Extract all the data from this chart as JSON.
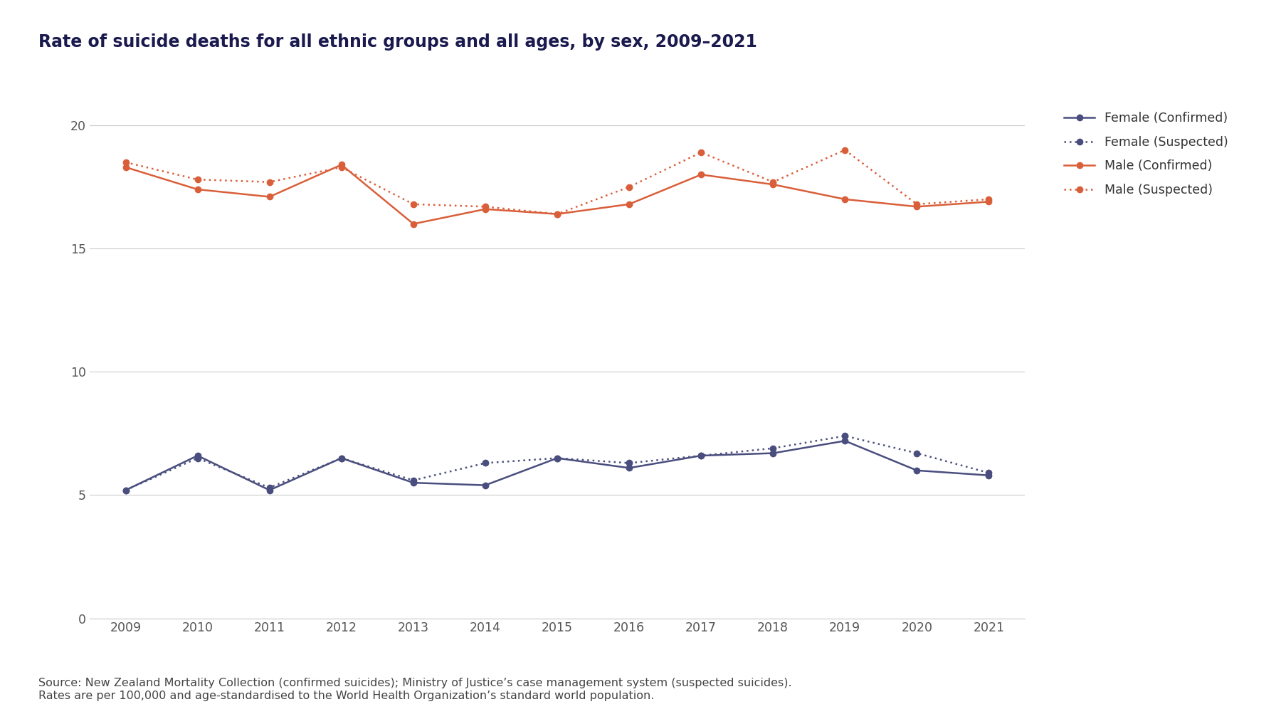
{
  "years": [
    2009,
    2010,
    2011,
    2012,
    2013,
    2014,
    2015,
    2016,
    2017,
    2018,
    2019,
    2020,
    2021
  ],
  "female_confirmed": [
    5.2,
    6.6,
    5.2,
    6.5,
    5.5,
    5.4,
    6.5,
    6.1,
    6.6,
    6.7,
    7.2,
    6.0,
    5.8
  ],
  "female_suspected": [
    5.2,
    6.5,
    5.3,
    6.5,
    5.6,
    6.3,
    6.5,
    6.3,
    6.6,
    6.9,
    7.4,
    6.7,
    5.9
  ],
  "male_confirmed": [
    18.3,
    17.4,
    17.1,
    18.4,
    16.0,
    16.6,
    16.4,
    16.8,
    18.0,
    17.6,
    17.0,
    16.7,
    16.9
  ],
  "male_suspected": [
    18.5,
    17.8,
    17.7,
    18.3,
    16.8,
    16.7,
    16.4,
    17.5,
    18.9,
    17.7,
    19.0,
    16.8,
    17.0
  ],
  "female_color": "#4a4e7e",
  "male_color": "#d95f3a",
  "title": "Rate of suicide deaths for all ethnic groups and all ages, by sex, 2009–2021",
  "legend_labels": [
    "Female (Confirmed)",
    "Female (Suspected)",
    "Male (Confirmed)",
    "Male (Suspected)"
  ],
  "footnote_line1": "Source: New Zealand Mortality Collection (confirmed suicides); Ministry of Justice’s case management system (suspected suicides).",
  "footnote_line2": "Rates are per 100,000 and age-standardised to the World Health Organization’s standard world population.",
  "ylim": [
    0,
    21
  ],
  "yticks": [
    0,
    5,
    10,
    15,
    20
  ],
  "background_color": "#ffffff",
  "title_fontsize": 17,
  "title_color": "#1a1a4e",
  "footnote_fontsize": 11.5,
  "tick_fontsize": 12.5,
  "axis_color": "#555555"
}
